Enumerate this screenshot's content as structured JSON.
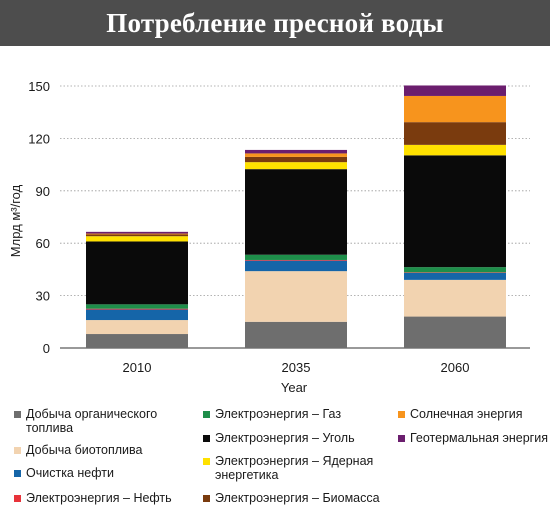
{
  "header": {
    "title": "Потребление пресной воды"
  },
  "chart_data": {
    "type": "bar",
    "stacked": true,
    "categories": [
      "2010",
      "2035",
      "2060"
    ],
    "xlabel": "Year",
    "ylabel": "Млрд м³/год",
    "ylim": [
      0,
      150
    ],
    "yticks": [
      0,
      30,
      60,
      90,
      120,
      150
    ],
    "grid": "horizontal-dotted",
    "legend_position": "bottom",
    "series": [
      {
        "name": "Добыча органического топлива",
        "color": "#6e6e6e",
        "values": [
          8,
          15,
          18
        ]
      },
      {
        "name": "Добыча биотоплива",
        "color": "#f2d3b0",
        "values": [
          8,
          29,
          21
        ]
      },
      {
        "name": "Очистка нефти",
        "color": "#1565a8",
        "values": [
          6,
          6,
          4
        ]
      },
      {
        "name": "Электроэнергия – Нефть",
        "color": "#e8333a",
        "values": [
          0.5,
          0.4,
          0.3
        ]
      },
      {
        "name": "Электроэнергия – Газ",
        "color": "#1e8e4a",
        "values": [
          2.5,
          3,
          3
        ]
      },
      {
        "name": "Электроэнергия – Уголь",
        "color": "#0a0a0a",
        "values": [
          36,
          49,
          64
        ]
      },
      {
        "name": "Электроэнергия – Ядерная энергетика",
        "color": "#ffe100",
        "values": [
          3,
          4,
          6
        ]
      },
      {
        "name": "Электроэнергия – Биомасса",
        "color": "#7a3b0e",
        "values": [
          1,
          3,
          13
        ]
      },
      {
        "name": "Солнечная энергия",
        "color": "#f7941d",
        "values": [
          0.5,
          2,
          15
        ]
      },
      {
        "name": "Геотермальная энергия",
        "color": "#6b1e6e",
        "values": [
          1,
          2,
          6
        ]
      }
    ]
  },
  "legend": {
    "items": [
      {
        "label": "Добыча органического топлива",
        "color": "#6e6e6e"
      },
      {
        "label": "Добыча биотоплива",
        "color": "#f2d3b0"
      },
      {
        "label": "Очистка нефти",
        "color": "#1565a8"
      },
      {
        "label": "Электроэнергия – Нефть",
        "color": "#e8333a"
      },
      {
        "label": "Электроэнергия – Газ",
        "color": "#1e8e4a"
      },
      {
        "label": "Электроэнергия – Уголь",
        "color": "#0a0a0a"
      },
      {
        "label": "Электроэнергия – Ядерная энергетика",
        "color": "#ffe100"
      },
      {
        "label": "Электроэнергия – Биомасса",
        "color": "#7a3b0e"
      },
      {
        "label": "Солнечная энергия",
        "color": "#f7941d"
      },
      {
        "label": "Геотермальная энергия",
        "color": "#6b1e6e"
      }
    ]
  }
}
